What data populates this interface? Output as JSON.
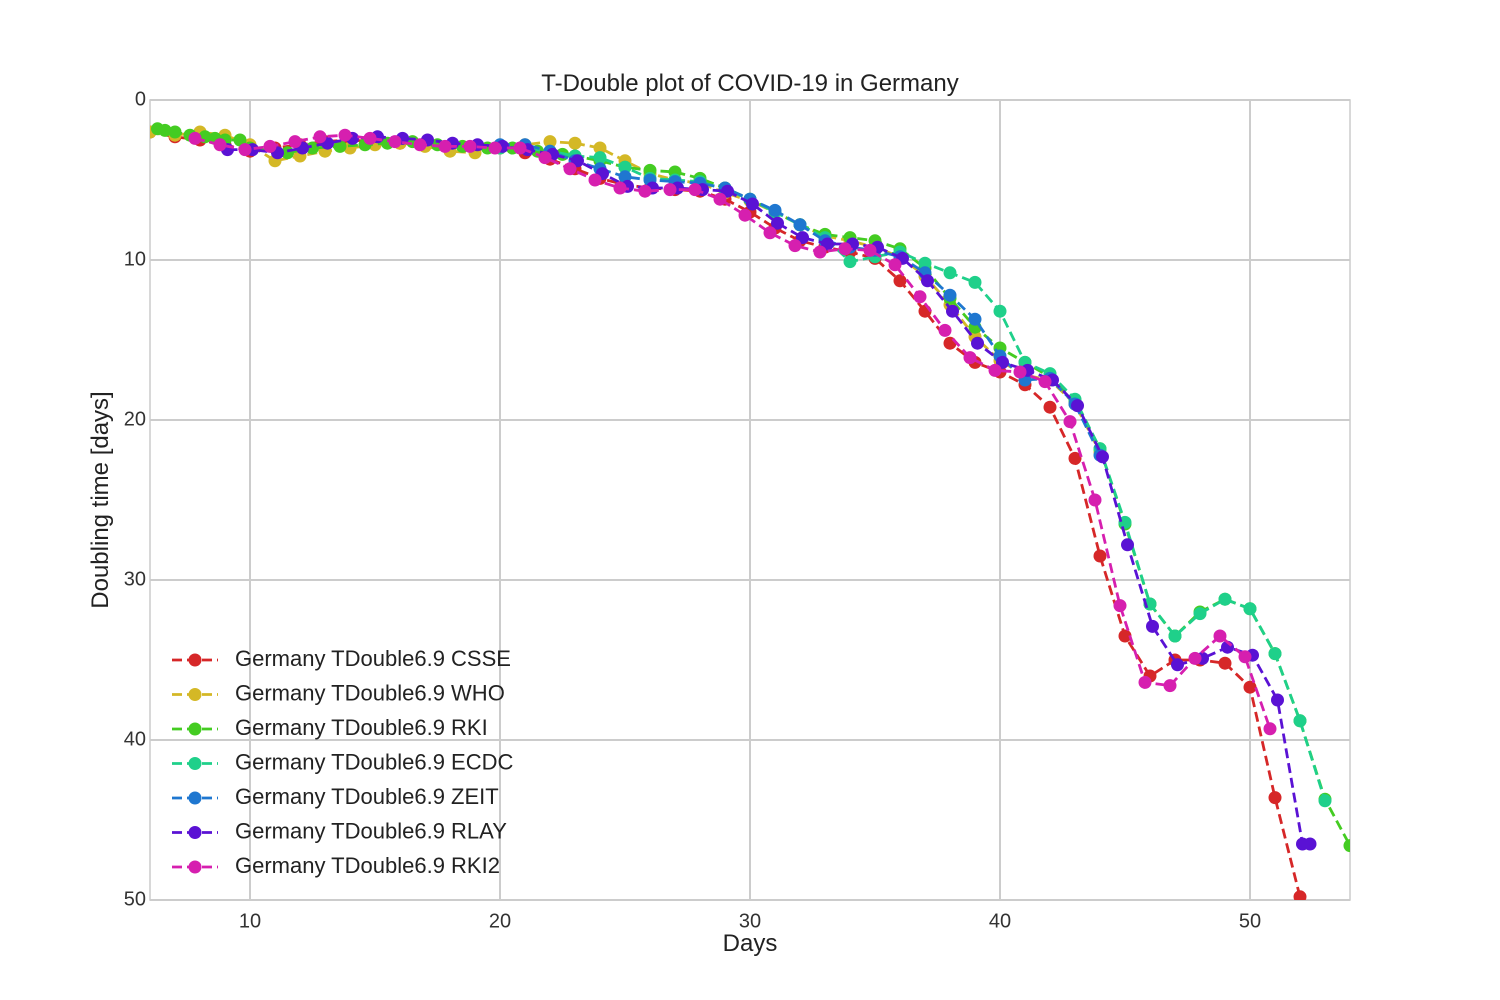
{
  "chart_data": {
    "type": "line",
    "title": "T-Double plot of COVID-19 in Germany",
    "xlabel": "Days",
    "ylabel": "Doubling time [days]",
    "xlim": [
      6,
      54
    ],
    "ylim": [
      0,
      50
    ],
    "y_inverted": true,
    "x_ticks": [
      10,
      20,
      30,
      40,
      50
    ],
    "y_ticks": [
      0,
      10,
      20,
      30,
      40,
      50
    ],
    "grid": true,
    "legend_position": "lower-left",
    "line_style": "dashed",
    "marker": "circle",
    "series": [
      {
        "name": "Germany TDouble6.9 CSSE",
        "color": "#d62728",
        "x": [
          6,
          7,
          8,
          9,
          10,
          11,
          12,
          13,
          14,
          15,
          16,
          17,
          18,
          19,
          20,
          21,
          22,
          23,
          24,
          25,
          26,
          27,
          28,
          29,
          30,
          31,
          32,
          33,
          34,
          35,
          36,
          37,
          38,
          39,
          40,
          41,
          42,
          43,
          44,
          45,
          46,
          47,
          48,
          49,
          50,
          51,
          52
        ],
        "y": [
          2.0,
          2.3,
          2.5,
          2.8,
          3.2,
          3.0,
          2.8,
          2.6,
          2.5,
          2.6,
          2.7,
          2.8,
          2.9,
          3.0,
          3.0,
          3.3,
          3.7,
          4.3,
          4.9,
          5.3,
          5.5,
          5.6,
          5.7,
          6.2,
          7.0,
          8.0,
          8.8,
          9.2,
          9.5,
          9.9,
          11.3,
          13.2,
          15.2,
          16.4,
          17.0,
          17.8,
          19.2,
          22.4,
          28.5,
          33.5,
          36.0,
          35.0,
          35.0,
          35.2,
          36.7,
          43.6,
          49.8
        ]
      },
      {
        "name": "Germany TDouble6.9 WHO",
        "color": "#d4b826",
        "x": [
          6,
          7,
          8,
          9,
          10,
          11,
          12,
          13,
          14,
          15,
          16,
          17,
          18,
          19,
          20,
          21,
          22,
          23,
          24,
          25,
          26,
          27,
          28,
          29,
          30,
          31,
          32,
          33,
          34,
          35,
          36,
          37,
          38,
          39,
          40,
          41,
          42,
          43,
          44
        ],
        "y": [
          2.0,
          2.2,
          2.0,
          2.2,
          2.8,
          3.8,
          3.5,
          3.2,
          3.0,
          2.8,
          2.7,
          2.9,
          3.2,
          3.3,
          3.0,
          2.8,
          2.6,
          2.7,
          3.0,
          3.8,
          4.6,
          5.0,
          5.2,
          5.8,
          6.3,
          7.0,
          7.8,
          8.5,
          8.8,
          9.2,
          9.8,
          11.0,
          12.8,
          14.8,
          16.3,
          17.2,
          17.5,
          19.0,
          22.0
        ]
      },
      {
        "name": "Germany TDouble6.9 RKI",
        "color": "#44cc22",
        "x": [
          6.3,
          6.6,
          7,
          7.6,
          8.2,
          8.6,
          9,
          9.6,
          10,
          11.5,
          12.5,
          13.6,
          14.6,
          15.5,
          16.5,
          17.5,
          18.5,
          19.5,
          20.5,
          21.5,
          22.5,
          23,
          24,
          25,
          26,
          27,
          28,
          29,
          30,
          31,
          32,
          33,
          34,
          35,
          36,
          37,
          38,
          39,
          40,
          41,
          42,
          43,
          44,
          45,
          46,
          47,
          48,
          49,
          50,
          51,
          52,
          53,
          54
        ],
        "y": [
          1.8,
          1.9,
          2.0,
          2.2,
          2.3,
          2.4,
          2.5,
          2.5,
          3.0,
          3.3,
          3.0,
          2.9,
          2.8,
          2.7,
          2.6,
          2.8,
          2.9,
          3.0,
          3.0,
          3.2,
          3.4,
          3.5,
          3.8,
          4.2,
          4.4,
          4.5,
          4.9,
          5.5,
          6.2,
          7.0,
          7.8,
          8.4,
          8.6,
          8.8,
          9.3,
          10.5,
          12.4,
          14.2,
          15.5,
          16.4,
          17.3,
          18.8,
          21.8,
          26.5,
          31.5,
          33.5,
          32.0,
          31.2,
          31.8,
          34.6,
          38.8,
          43.7,
          46.6
        ]
      },
      {
        "name": "Germany TDouble6.9 ECDC",
        "color": "#1fd08a",
        "x": [
          20,
          21,
          22,
          23,
          24,
          25,
          26,
          27,
          28,
          29,
          30,
          31,
          32,
          33,
          34,
          35,
          36,
          37,
          38,
          39,
          40,
          41,
          42,
          43,
          44,
          45,
          46,
          47,
          48,
          49,
          50,
          51,
          52,
          53
        ],
        "y": [
          3.0,
          3.0,
          3.2,
          3.5,
          3.6,
          4.2,
          4.9,
          5.0,
          5.1,
          5.6,
          6.2,
          7.0,
          7.8,
          8.6,
          10.1,
          9.8,
          9.5,
          10.2,
          10.8,
          11.4,
          13.2,
          16.4,
          17.1,
          18.7,
          21.8,
          26.4,
          31.5,
          33.5,
          32.1,
          31.2,
          31.8,
          34.6,
          38.8,
          43.8
        ]
      },
      {
        "name": "Germany TDouble6.9 ZEIT",
        "color": "#1f77d0",
        "x": [
          20,
          21,
          22,
          23,
          24,
          25,
          26,
          27,
          28,
          29,
          30,
          31,
          32,
          33,
          34,
          35,
          36,
          37,
          38,
          39,
          40,
          41,
          42,
          43,
          44
        ],
        "y": [
          2.8,
          2.8,
          3.2,
          3.8,
          4.3,
          4.8,
          5.0,
          5.1,
          5.2,
          5.5,
          6.2,
          6.9,
          7.8,
          8.8,
          9.2,
          9.4,
          9.8,
          10.8,
          12.2,
          13.7,
          16.0,
          17.5,
          17.4,
          19.0,
          22.2
        ]
      },
      {
        "name": "Germany TDouble6.9 RLAY",
        "color": "#5a12d4",
        "x": [
          9.1,
          10.1,
          11.1,
          12.1,
          13.1,
          14.1,
          15.1,
          16.1,
          17.1,
          18.1,
          19.1,
          20.1,
          21.1,
          22.1,
          23.1,
          24.1,
          25.1,
          26.1,
          27.1,
          28.1,
          29.1,
          30.1,
          31.1,
          32.1,
          33.1,
          34.1,
          35.1,
          36.1,
          37.1,
          38.1,
          39.1,
          40.1,
          41.1,
          42.1,
          43.1,
          44.1,
          45.1,
          46.1,
          47.1,
          48.1,
          49.1,
          50.1,
          51.1,
          52.1,
          52.4
        ],
        "y": [
          3.1,
          3.1,
          3.3,
          3.0,
          2.7,
          2.4,
          2.3,
          2.4,
          2.5,
          2.7,
          2.8,
          2.9,
          3.1,
          3.4,
          3.8,
          4.6,
          5.4,
          5.5,
          5.5,
          5.6,
          5.7,
          6.5,
          7.7,
          8.6,
          9.0,
          9.0,
          9.2,
          9.9,
          11.3,
          13.2,
          15.2,
          16.4,
          16.9,
          17.5,
          19.1,
          22.3,
          27.8,
          32.9,
          35.3,
          34.9,
          34.2,
          34.7,
          37.5,
          46.5,
          46.5
        ]
      },
      {
        "name": "Germany TDouble6.9 RKI2",
        "color": "#d61faf",
        "x": [
          7.8,
          8.8,
          9.8,
          10.8,
          11.8,
          12.8,
          13.8,
          14.8,
          15.8,
          16.8,
          17.8,
          18.8,
          19.8,
          20.8,
          21.8,
          22.8,
          23.8,
          24.8,
          25.8,
          26.8,
          27.8,
          28.8,
          29.8,
          30.8,
          31.8,
          32.8,
          33.8,
          34.8,
          35.8,
          36.8,
          37.8,
          38.8,
          39.8,
          40.8,
          41.8,
          42.8,
          43.8,
          44.8,
          45.8,
          46.8,
          47.8,
          48.8,
          49.8,
          50.8
        ],
        "y": [
          2.4,
          2.8,
          3.1,
          2.9,
          2.6,
          2.3,
          2.2,
          2.4,
          2.6,
          2.8,
          2.9,
          2.9,
          3.0,
          3.0,
          3.6,
          4.3,
          5.0,
          5.5,
          5.7,
          5.6,
          5.6,
          6.2,
          7.2,
          8.3,
          9.1,
          9.5,
          9.3,
          9.4,
          10.3,
          12.3,
          14.4,
          16.1,
          16.9,
          17.0,
          17.6,
          20.1,
          25.0,
          31.6,
          36.4,
          36.6,
          34.9,
          33.5,
          34.8,
          39.3
        ]
      }
    ]
  }
}
